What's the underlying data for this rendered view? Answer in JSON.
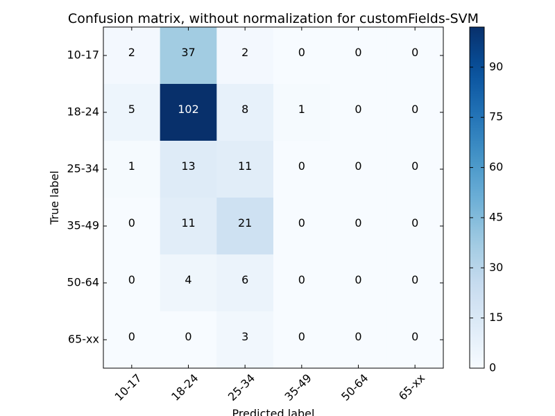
{
  "chart_data": {
    "type": "heatmap",
    "title": "Confusion matrix, without normalization for customFields-SVM",
    "xlabel": "Predicted label",
    "ylabel": "True label",
    "x_categories": [
      "10-17",
      "18-24",
      "25-34",
      "35-49",
      "50-64",
      "65-xx"
    ],
    "y_categories": [
      "10-17",
      "18-24",
      "25-34",
      "35-49",
      "50-64",
      "65-xx"
    ],
    "values": [
      [
        2,
        37,
        2,
        0,
        0,
        0
      ],
      [
        5,
        102,
        8,
        1,
        0,
        0
      ],
      [
        1,
        13,
        11,
        0,
        0,
        0
      ],
      [
        0,
        11,
        21,
        0,
        0,
        0
      ],
      [
        0,
        4,
        6,
        0,
        0,
        0
      ],
      [
        0,
        0,
        3,
        0,
        0,
        0
      ]
    ],
    "vmin": 0,
    "vmax": 102,
    "colormap": "Blues",
    "colorbar_ticks": [
      0,
      15,
      30,
      45,
      60,
      75,
      90
    ],
    "x_tick_rotation_deg": 45,
    "grid": false
  }
}
